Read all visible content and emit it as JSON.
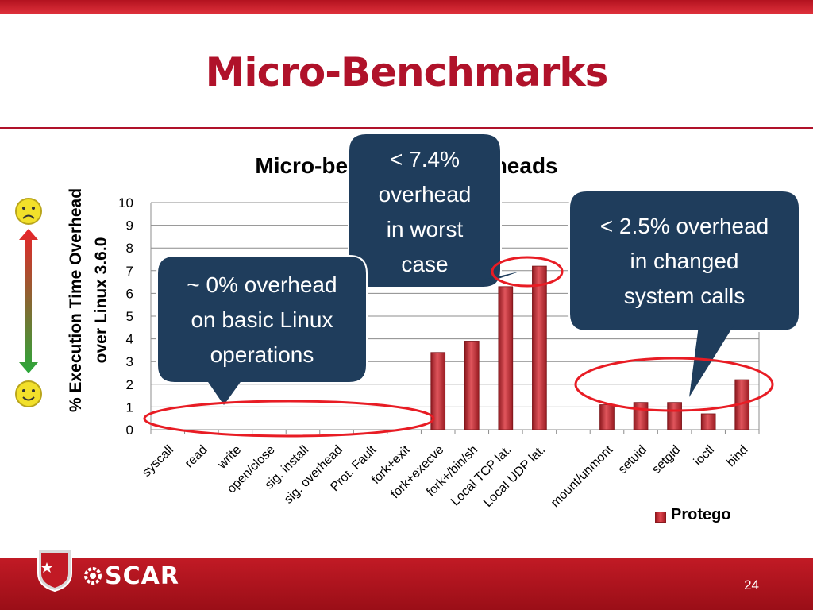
{
  "slide": {
    "title": "Micro-Benchmarks",
    "page_number": "24",
    "logo_text": "SCAR"
  },
  "colors": {
    "brand_red": "#b0122a",
    "bar_red": "#c0282f",
    "callout_navy": "#1f3d5c",
    "ellipse_red": "#e81c24"
  },
  "callouts": {
    "worst_case": [
      "< 7.4%",
      "overhead",
      "in worst",
      "case"
    ],
    "changed_calls": [
      "< 2.5% overhead",
      "in changed",
      "system calls"
    ],
    "basic_ops": [
      "~ 0% overhead",
      "on basic Linux",
      "operations"
    ]
  },
  "icons": [
    "sad-face-icon",
    "happy-face-icon",
    "double-arrow-icon"
  ],
  "chart_data": {
    "type": "bar",
    "title": "Micro-benchmark overheads",
    "ylabel": "% Execution Time Overhead over Linux 3.6.0",
    "ylim": [
      0,
      10
    ],
    "yticks": [
      "0",
      "1",
      "2",
      "3",
      "4",
      "5",
      "6",
      "7",
      "8",
      "9",
      "10"
    ],
    "categories": [
      "syscall",
      "read",
      "write",
      "open/close",
      "sig. install",
      "sig. overhead",
      "Prot. Fault",
      "fork+exit",
      "fork+execve",
      "fork+/bin/sh",
      "Local TCP lat.",
      "Local UDP lat.",
      "",
      "mount/unmont",
      "setuid",
      "setgid",
      "ioctl",
      "bind"
    ],
    "series": [
      {
        "name": "Protego",
        "values": [
          0,
          0,
          0,
          0,
          0,
          0,
          0,
          0,
          3.4,
          3.9,
          6.3,
          7.2,
          null,
          1.1,
          1.2,
          1.2,
          0.7,
          2.2
        ]
      }
    ],
    "grid": true,
    "legend": "bottom-right"
  }
}
